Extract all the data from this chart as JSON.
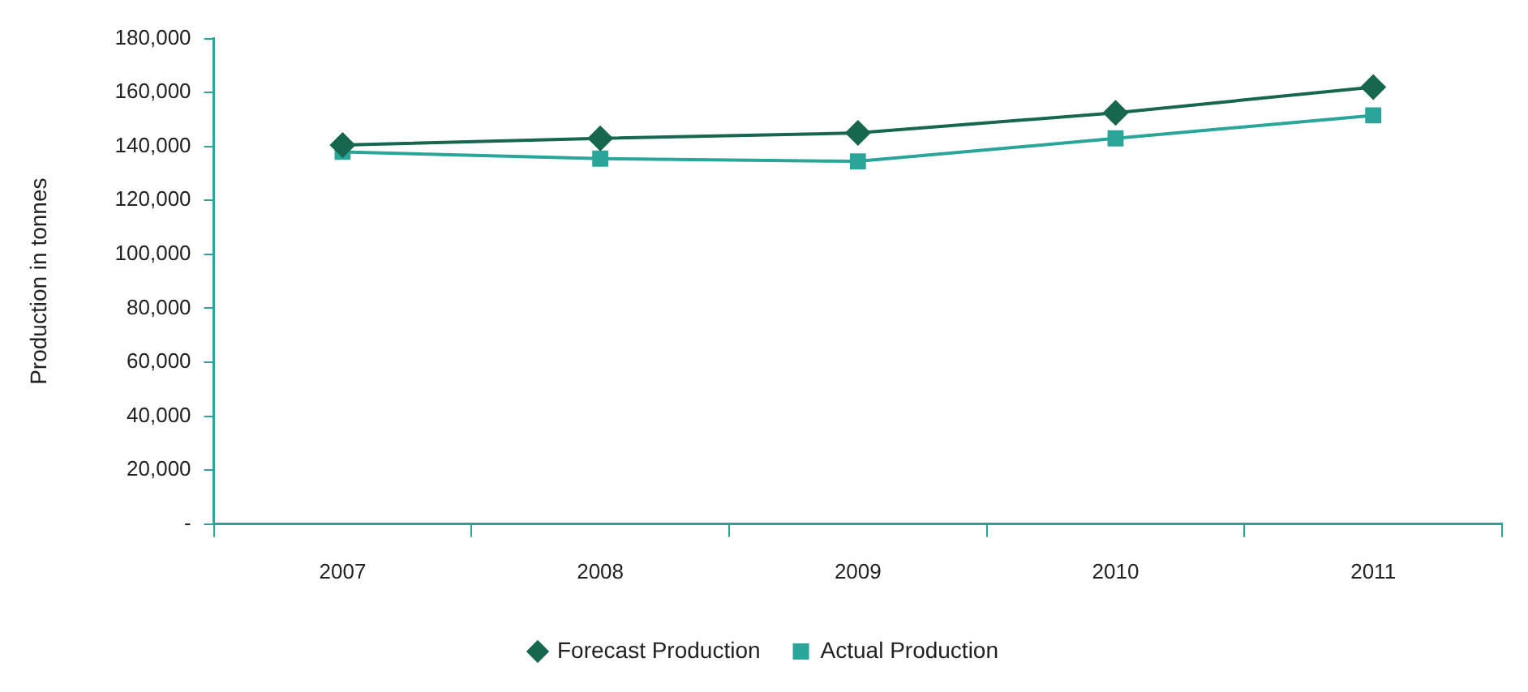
{
  "chart_data": {
    "type": "line",
    "ylabel": "Production in tonnes",
    "categories": [
      "2007",
      "2008",
      "2009",
      "2010",
      "2011"
    ],
    "series": [
      {
        "name": "Actual Production",
        "color": "#2aa59a",
        "marker": "square",
        "values": [
          138000,
          135500,
          134500,
          143000,
          151500
        ]
      },
      {
        "name": "Forecast Production",
        "color": "#17664f",
        "marker": "diamond",
        "values": [
          140500,
          143000,
          145000,
          152500,
          162000
        ]
      }
    ],
    "ylim": [
      0,
      180000
    ],
    "yticks": [
      {
        "value": 0,
        "label": "-"
      },
      {
        "value": 20000,
        "label": "20,000"
      },
      {
        "value": 40000,
        "label": "40,000"
      },
      {
        "value": 60000,
        "label": "60,000"
      },
      {
        "value": 80000,
        "label": "80,000"
      },
      {
        "value": 100000,
        "label": "100,000"
      },
      {
        "value": 120000,
        "label": "120,000"
      },
      {
        "value": 140000,
        "label": "140,000"
      },
      {
        "value": 160000,
        "label": "160,000"
      },
      {
        "value": 180000,
        "label": "180,000"
      }
    ],
    "grid": false,
    "legend": "bottom"
  }
}
